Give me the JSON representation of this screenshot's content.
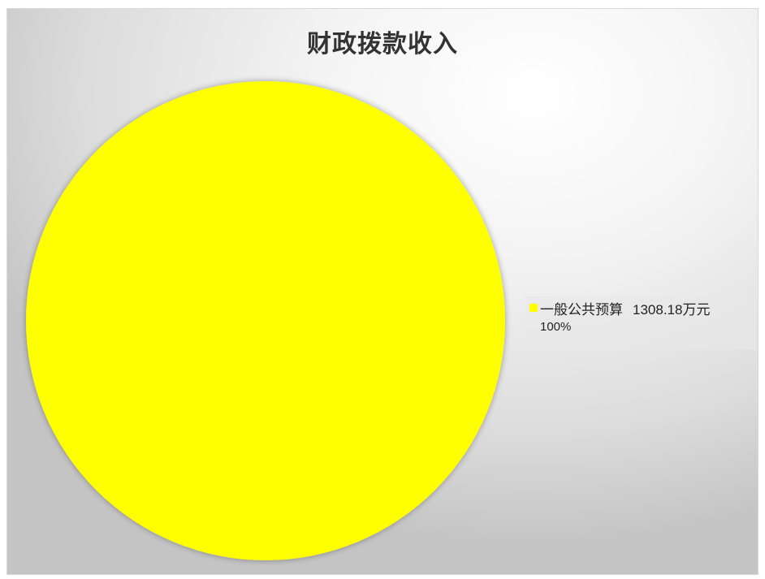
{
  "chart_data": {
    "type": "pie",
    "title": "财政拨款收入",
    "slices": [
      {
        "label": "一般公共预算",
        "value": 1308.18,
        "value_text": "1308.18万元",
        "percent_text": "100%",
        "color": "#FFFF00"
      }
    ],
    "legend_position": "right"
  }
}
